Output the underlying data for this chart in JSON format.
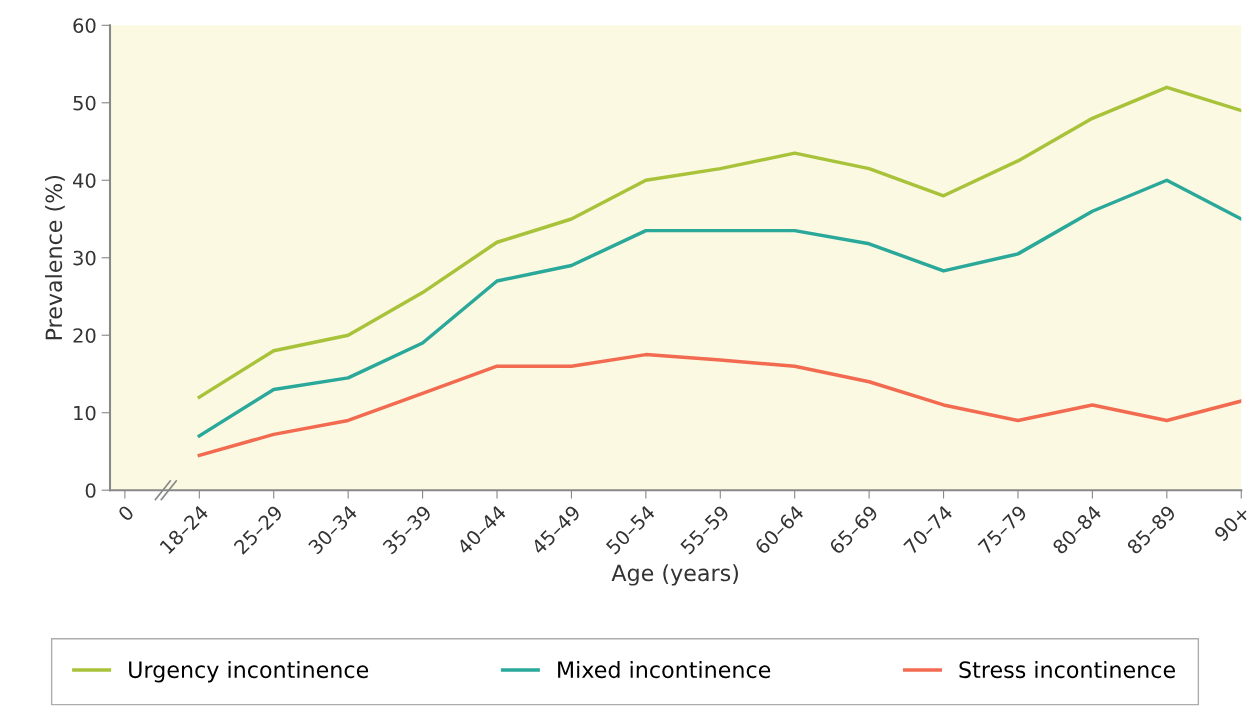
{
  "chart_data": {
    "type": "line",
    "xlabel": "Age (years)",
    "ylabel": "Prevalence (%)",
    "categories": [
      "0",
      "18–24",
      "25–29",
      "30–34",
      "35–39",
      "40–44",
      "45–49",
      "50–54",
      "55–59",
      "60–64",
      "65–69",
      "70–74",
      "75–79",
      "80–84",
      "85–89",
      "90+"
    ],
    "series": [
      {
        "name": "Urgency incontinence",
        "color": "#a8c23a",
        "values": [
          null,
          12,
          18,
          20,
          25.5,
          32,
          35,
          40,
          41.5,
          43.5,
          41.5,
          38,
          42.5,
          48,
          52,
          49
        ]
      },
      {
        "name": "Mixed incontinence",
        "color": "#2aa89a",
        "values": [
          null,
          7,
          13,
          14.5,
          19,
          27,
          29,
          33.5,
          33.5,
          33.5,
          31.8,
          28.3,
          30.5,
          36,
          40,
          35
        ]
      },
      {
        "name": "Stress incontinence",
        "color": "#f26b50",
        "values": [
          null,
          4.5,
          7.2,
          9,
          12.5,
          16,
          16,
          17.5,
          16.8,
          16,
          14,
          11,
          9,
          11,
          9,
          11.5
        ]
      }
    ],
    "ylim": [
      0,
      60
    ],
    "yticks": [
      0,
      10,
      20,
      30,
      40,
      50,
      60
    ],
    "grid": false,
    "legend": "bottom",
    "marker": "none",
    "line_style": "solid"
  }
}
